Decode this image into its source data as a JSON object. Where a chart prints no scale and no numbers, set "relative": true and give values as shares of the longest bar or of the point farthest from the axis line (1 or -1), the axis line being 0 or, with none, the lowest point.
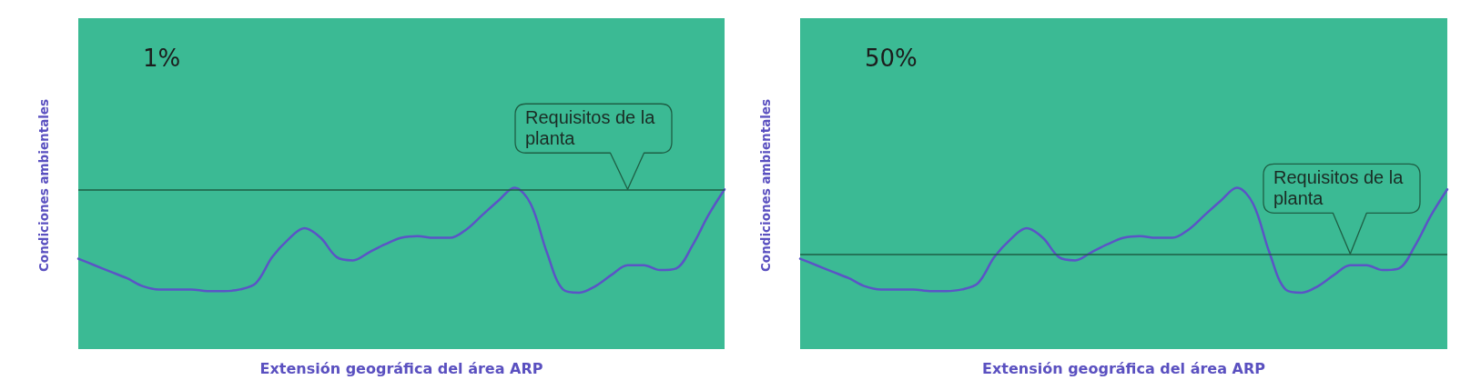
{
  "chart_data": [
    {
      "type": "line",
      "title": "1%",
      "xlabel": "Extensión geográfica del área ARP",
      "ylabel": "Condiciones ambientales",
      "relative": true,
      "marker": "none",
      "categories": [
        null,
        null,
        null,
        null,
        null,
        null,
        null,
        null,
        null,
        null,
        null,
        null,
        null,
        null,
        null,
        null,
        null,
        null,
        null,
        null,
        null,
        null,
        null,
        null,
        null,
        null,
        null,
        null,
        null,
        null,
        null,
        null,
        null,
        null,
        null,
        null,
        null,
        null,
        null,
        null,
        null
      ],
      "series": [
        {
          "color": "#5b54c6",
          "values": [
            0.56,
            0.52,
            0.48,
            0.44,
            0.39,
            0.37,
            0.37,
            0.37,
            0.36,
            0.36,
            0.37,
            0.41,
            0.57,
            0.68,
            0.75,
            0.69,
            0.57,
            0.55,
            0.6,
            0.65,
            0.69,
            0.7,
            0.69,
            0.69,
            0.74,
            0.83,
            0.92,
            1,
            0.9,
            0.6,
            0.37,
            0.35,
            0.39,
            0.46,
            0.52,
            0.52,
            0.49,
            0.5,
            0.64,
            0.83,
            0.99
          ]
        }
      ],
      "ref_lines": [
        {
          "axis": "y",
          "value": 0.99,
          "label": "Requisitos de la planta",
          "color": "#1e5e44"
        }
      ]
    },
    {
      "type": "line",
      "title": "50%",
      "xlabel": "Extensión geográfica del área ARP",
      "ylabel": "Condiciones ambientales",
      "relative": true,
      "marker": "none",
      "categories": [
        null,
        null,
        null,
        null,
        null,
        null,
        null,
        null,
        null,
        null,
        null,
        null,
        null,
        null,
        null,
        null,
        null,
        null,
        null,
        null,
        null,
        null,
        null,
        null,
        null,
        null,
        null,
        null,
        null,
        null,
        null,
        null,
        null,
        null,
        null,
        null,
        null,
        null,
        null,
        null,
        null
      ],
      "series": [
        {
          "color": "#5b54c6",
          "values": [
            0.56,
            0.52,
            0.48,
            0.44,
            0.39,
            0.37,
            0.37,
            0.37,
            0.36,
            0.36,
            0.37,
            0.41,
            0.57,
            0.68,
            0.75,
            0.69,
            0.57,
            0.55,
            0.6,
            0.65,
            0.69,
            0.7,
            0.69,
            0.69,
            0.74,
            0.83,
            0.92,
            1,
            0.9,
            0.6,
            0.37,
            0.35,
            0.39,
            0.46,
            0.52,
            0.52,
            0.49,
            0.5,
            0.64,
            0.83,
            0.99
          ]
        }
      ],
      "ref_lines": [
        {
          "axis": "y",
          "value": 0.59,
          "label": "Requisitos de la planta",
          "color": "#1e5e44"
        }
      ]
    }
  ]
}
